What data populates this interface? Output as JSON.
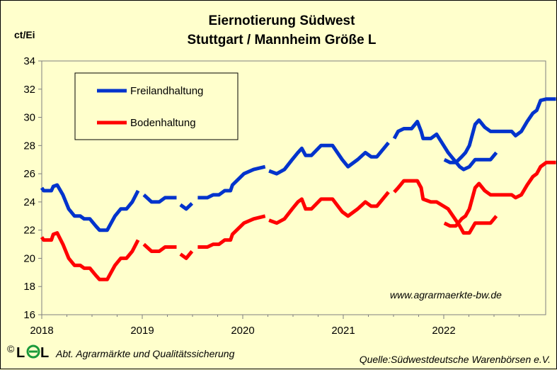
{
  "chart_data": {
    "type": "line",
    "title": [
      "Eiernotierung Südwest",
      "Stuttgart / Mannheim Größe L"
    ],
    "ylabel": "ct/Ei",
    "ylim": [
      16,
      34
    ],
    "y_ticks": [
      "16",
      "18",
      "20",
      "22",
      "24",
      "26",
      "28",
      "30",
      "32",
      "34"
    ],
    "x_ticks": [
      "2018",
      "2019",
      "2020",
      "2021",
      "2022"
    ],
    "xlim": [
      "2018-01-01",
      "2022-12-31"
    ],
    "grid": false,
    "legend_position": "top-left",
    "series": [
      {
        "name": "Freilandhaltung",
        "color": "#0033CC",
        "segments": [
          [
            [
              "2018-01-01",
              25.0
            ],
            [
              "2018-01-08",
              24.8
            ],
            [
              "2018-02-05",
              24.8
            ],
            [
              "2018-02-12",
              25.1
            ],
            [
              "2018-02-26",
              25.2
            ],
            [
              "2018-03-19",
              24.5
            ],
            [
              "2018-04-09",
              23.5
            ],
            [
              "2018-04-30",
              23.0
            ],
            [
              "2018-05-21",
              23.0
            ],
            [
              "2018-06-04",
              22.8
            ],
            [
              "2018-06-25",
              22.8
            ],
            [
              "2018-07-16",
              22.3
            ],
            [
              "2018-07-30",
              22.0
            ],
            [
              "2018-08-27",
              22.0
            ],
            [
              "2018-09-24",
              23.0
            ],
            [
              "2018-10-15",
              23.5
            ],
            [
              "2018-11-05",
              23.5
            ],
            [
              "2018-11-26",
              24.0
            ],
            [
              "2018-12-17",
              24.8
            ]
          ],
          [
            [
              "2019-01-07",
              24.5
            ],
            [
              "2019-02-04",
              24.0
            ],
            [
              "2019-03-04",
              24.0
            ],
            [
              "2019-03-25",
              24.3
            ],
            [
              "2019-05-06",
              24.3
            ]
          ],
          [
            [
              "2019-05-20",
              23.8
            ],
            [
              "2019-06-10",
              23.5
            ],
            [
              "2019-07-01",
              23.9
            ]
          ],
          [
            [
              "2019-07-22",
              24.3
            ],
            [
              "2019-08-26",
              24.3
            ],
            [
              "2019-09-16",
              24.5
            ],
            [
              "2019-10-07",
              24.5
            ],
            [
              "2019-10-28",
              24.8
            ],
            [
              "2019-11-18",
              24.8
            ],
            [
              "2019-11-25",
              25.2
            ],
            [
              "2020-01-06",
              26.0
            ],
            [
              "2020-02-10",
              26.3
            ],
            [
              "2020-03-23",
              26.5
            ]
          ],
          [
            [
              "2020-04-06",
              26.2
            ],
            [
              "2020-05-04",
              26.0
            ],
            [
              "2020-06-01",
              26.3
            ],
            [
              "2020-06-29",
              27.0
            ],
            [
              "2020-07-20",
              27.5
            ],
            [
              "2020-08-03",
              27.8
            ],
            [
              "2020-08-17",
              27.3
            ],
            [
              "2020-09-07",
              27.3
            ],
            [
              "2020-10-12",
              28.0
            ],
            [
              "2020-11-23",
              28.0
            ],
            [
              "2020-12-28",
              27.0
            ],
            [
              "2021-01-18",
              26.5
            ],
            [
              "2021-02-22",
              27.0
            ],
            [
              "2021-03-22",
              27.5
            ],
            [
              "2021-04-12",
              27.2
            ],
            [
              "2021-05-03",
              27.2
            ],
            [
              "2021-06-14",
              28.2
            ]
          ],
          [
            [
              "2021-07-05",
              28.5
            ],
            [
              "2021-07-19",
              29.0
            ],
            [
              "2021-08-09",
              29.2
            ],
            [
              "2021-09-06",
              29.2
            ],
            [
              "2021-09-27",
              29.7
            ],
            [
              "2021-10-11",
              29.0
            ],
            [
              "2021-10-18",
              28.5
            ],
            [
              "2021-11-15",
              28.5
            ],
            [
              "2021-12-06",
              28.8
            ],
            [
              "2022-01-17",
              27.5
            ],
            [
              "2022-02-28",
              26.5
            ],
            [
              "2022-03-14",
              26.3
            ],
            [
              "2022-04-04",
              26.5
            ],
            [
              "2022-04-25",
              27.0
            ],
            [
              "2022-05-30",
              27.0
            ],
            [
              "2022-06-20",
              27.0
            ],
            [
              "2022-07-11",
              27.5
            ]
          ]
        ]
      },
      {
        "name": "Bodenhaltung",
        "color": "#FF0000",
        "segments": [
          [
            [
              "2018-01-01",
              21.5
            ],
            [
              "2018-01-08",
              21.3
            ],
            [
              "2018-02-05",
              21.3
            ],
            [
              "2018-02-12",
              21.7
            ],
            [
              "2018-02-26",
              21.8
            ],
            [
              "2018-03-19",
              21.0
            ],
            [
              "2018-04-09",
              20.0
            ],
            [
              "2018-04-30",
              19.5
            ],
            [
              "2018-05-21",
              19.5
            ],
            [
              "2018-06-04",
              19.3
            ],
            [
              "2018-06-25",
              19.3
            ],
            [
              "2018-07-16",
              18.8
            ],
            [
              "2018-07-30",
              18.5
            ],
            [
              "2018-08-27",
              18.5
            ],
            [
              "2018-09-24",
              19.5
            ],
            [
              "2018-10-15",
              20.0
            ],
            [
              "2018-11-05",
              20.0
            ],
            [
              "2018-11-26",
              20.5
            ],
            [
              "2018-12-17",
              21.3
            ]
          ],
          [
            [
              "2019-01-07",
              21.0
            ],
            [
              "2019-02-04",
              20.5
            ],
            [
              "2019-03-04",
              20.5
            ],
            [
              "2019-03-25",
              20.8
            ],
            [
              "2019-05-06",
              20.8
            ]
          ],
          [
            [
              "2019-05-20",
              20.3
            ],
            [
              "2019-06-10",
              20.0
            ],
            [
              "2019-07-01",
              20.5
            ]
          ],
          [
            [
              "2019-07-22",
              20.8
            ],
            [
              "2019-08-26",
              20.8
            ],
            [
              "2019-09-16",
              21.0
            ],
            [
              "2019-10-07",
              21.0
            ],
            [
              "2019-10-28",
              21.3
            ],
            [
              "2019-11-18",
              21.3
            ],
            [
              "2019-11-25",
              21.7
            ],
            [
              "2020-01-06",
              22.5
            ],
            [
              "2020-02-10",
              22.8
            ],
            [
              "2020-03-23",
              23.0
            ]
          ],
          [
            [
              "2020-04-06",
              22.7
            ],
            [
              "2020-05-04",
              22.5
            ],
            [
              "2020-06-01",
              22.8
            ],
            [
              "2020-06-29",
              23.5
            ],
            [
              "2020-07-20",
              24.0
            ],
            [
              "2020-08-03",
              24.2
            ],
            [
              "2020-08-17",
              23.5
            ],
            [
              "2020-09-07",
              23.5
            ],
            [
              "2020-10-12",
              24.2
            ],
            [
              "2020-11-23",
              24.2
            ],
            [
              "2020-12-28",
              23.3
            ],
            [
              "2021-01-18",
              23.0
            ],
            [
              "2021-02-22",
              23.5
            ],
            [
              "2021-03-22",
              24.0
            ],
            [
              "2021-04-12",
              23.7
            ],
            [
              "2021-05-03",
              23.7
            ],
            [
              "2021-06-14",
              24.7
            ]
          ],
          [
            [
              "2021-07-05",
              24.7
            ],
            [
              "2021-07-19",
              25.0
            ],
            [
              "2021-08-09",
              25.5
            ],
            [
              "2021-09-06",
              25.5
            ],
            [
              "2021-09-27",
              25.5
            ],
            [
              "2021-10-11",
              25.0
            ],
            [
              "2021-10-18",
              24.2
            ],
            [
              "2021-11-15",
              24.0
            ],
            [
              "2021-12-06",
              24.0
            ],
            [
              "2022-01-17",
              23.5
            ],
            [
              "2022-02-28",
              22.3
            ],
            [
              "2022-03-14",
              21.8
            ],
            [
              "2022-04-04",
              21.8
            ],
            [
              "2022-04-25",
              22.5
            ],
            [
              "2022-05-30",
              22.5
            ],
            [
              "2022-06-20",
              22.5
            ],
            [
              "2022-07-11",
              23.0
            ]
          ]
        ]
      }
    ],
    "second_panel_series": [
      {
        "name": "Freilandhaltung",
        "segments": [
          [
            [
              "2022-01-03",
              27.0
            ],
            [
              "2022-01-24",
              26.8
            ],
            [
              "2022-02-14",
              26.8
            ],
            [
              "2022-03-07",
              27.2
            ],
            [
              "2022-03-21",
              27.5
            ],
            [
              "2022-04-04",
              28.0
            ],
            [
              "2022-04-25",
              29.5
            ],
            [
              "2022-05-09",
              29.8
            ],
            [
              "2022-05-30",
              29.3
            ],
            [
              "2022-06-20",
              29.0
            ],
            [
              "2022-08-15",
              29.0
            ],
            [
              "2022-09-05",
              29.0
            ],
            [
              "2022-09-19",
              28.7
            ],
            [
              "2022-10-10",
              29.0
            ],
            [
              "2022-10-31",
              29.7
            ],
            [
              "2022-11-21",
              30.3
            ],
            [
              "2022-12-05",
              30.5
            ],
            [
              "2022-12-19",
              31.2
            ],
            [
              "2023-01-09",
              31.3
            ],
            [
              "2023-02-13",
              31.3
            ]
          ]
        ]
      },
      {
        "name": "Bodenhaltung",
        "segments": [
          [
            [
              "2022-01-03",
              22.5
            ],
            [
              "2022-01-24",
              22.3
            ],
            [
              "2022-02-14",
              22.3
            ],
            [
              "2022-03-07",
              22.8
            ],
            [
              "2022-03-21",
              23.0
            ],
            [
              "2022-04-04",
              23.5
            ],
            [
              "2022-04-25",
              25.0
            ],
            [
              "2022-05-09",
              25.3
            ],
            [
              "2022-05-30",
              24.8
            ],
            [
              "2022-06-20",
              24.5
            ],
            [
              "2022-08-15",
              24.5
            ],
            [
              "2022-09-05",
              24.5
            ],
            [
              "2022-09-19",
              24.3
            ],
            [
              "2022-10-10",
              24.5
            ],
            [
              "2022-10-31",
              25.2
            ],
            [
              "2022-11-21",
              25.8
            ],
            [
              "2022-12-05",
              26.0
            ],
            [
              "2022-12-19",
              26.5
            ],
            [
              "2023-01-09",
              26.8
            ],
            [
              "2023-02-13",
              26.8
            ]
          ]
        ]
      }
    ]
  },
  "watermark": "www.agrarmaerkte-bw.de",
  "footer": {
    "copyright_symbol": "©",
    "logo_text": "LEL",
    "org": "Abt. Agrarmärkte und Qualitätssicherung",
    "source": "Quelle:Südwestdeutsche Warenbörsen e.V."
  }
}
